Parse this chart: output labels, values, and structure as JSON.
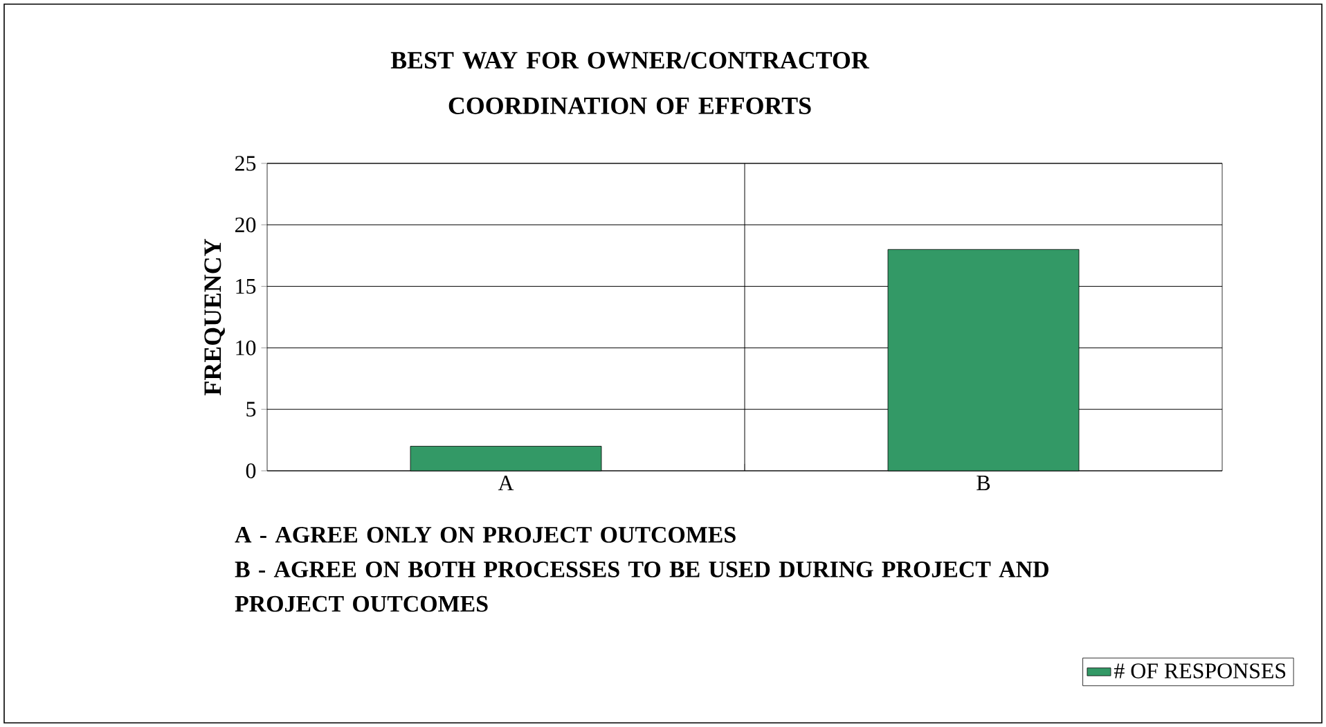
{
  "chart_data": {
    "type": "bar",
    "title": "BEST WAY FOR OWNER/CONTRACTOR COORDINATION OF EFFORTS",
    "ylabel": "FREQUENCY",
    "categories": [
      "A",
      "B"
    ],
    "series": [
      {
        "name": "# OF RESPONSES",
        "color": "#339966",
        "values": [
          2,
          18
        ]
      }
    ],
    "ylim": [
      0,
      25
    ],
    "yticks": [
      0,
      5,
      10,
      15,
      20,
      25
    ],
    "grid": true,
    "legend": "bottom right",
    "annotations": [
      "A - AGREE ONLY ON PROJECT OUTCOMES",
      "B - AGREE ON BOTH PROCESSES TO BE USED DURING PROJECT AND PROJECT OUTCOMES"
    ]
  }
}
